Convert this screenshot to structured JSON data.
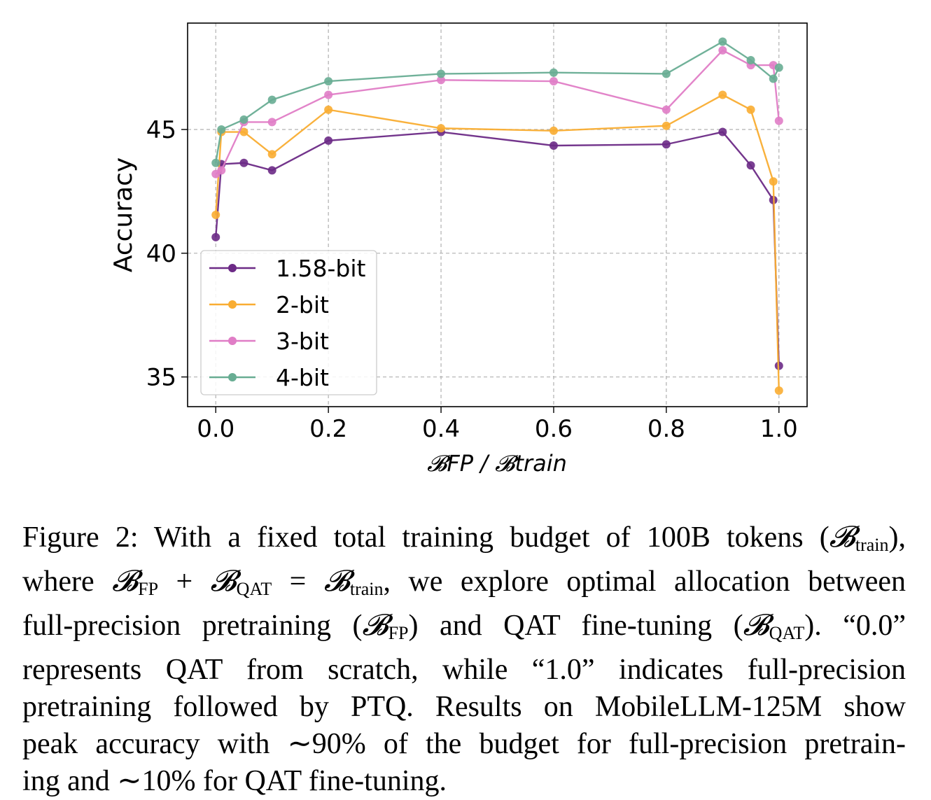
{
  "chart_data": {
    "type": "line",
    "xlabel": "𝓑FP / 𝓑train",
    "ylabel": "Accuracy",
    "xlim": [
      -0.05,
      1.05
    ],
    "ylim": [
      33.8,
      49.3
    ],
    "xticks": [
      0.0,
      0.2,
      0.4,
      0.6,
      0.8,
      1.0
    ],
    "xtick_labels": [
      "0.0",
      "0.2",
      "0.4",
      "0.6",
      "0.8",
      "1.0"
    ],
    "yticks": [
      35,
      40,
      45
    ],
    "ytick_labels": [
      "35",
      "40",
      "45"
    ],
    "grid": true,
    "legend_position": "lower-left",
    "x": [
      0.0,
      0.01,
      0.05,
      0.1,
      0.2,
      0.4,
      0.6,
      0.8,
      0.9,
      0.95,
      0.99,
      1.0
    ],
    "series": [
      {
        "name": "1.58-bit",
        "color": "#6c2a86",
        "values": [
          40.65,
          43.6,
          43.65,
          43.35,
          44.55,
          44.9,
          44.35,
          44.4,
          44.9,
          43.55,
          42.15,
          35.45
        ]
      },
      {
        "name": "2-bit",
        "color": "#f9ad32",
        "values": [
          41.55,
          44.9,
          44.9,
          44.0,
          45.8,
          45.05,
          44.95,
          45.15,
          46.4,
          45.8,
          42.9,
          34.45
        ]
      },
      {
        "name": "3-bit",
        "color": "#e07dc6",
        "values": [
          43.2,
          43.35,
          45.3,
          45.3,
          46.4,
          47.0,
          46.95,
          45.8,
          48.2,
          47.6,
          47.6,
          45.35
        ]
      },
      {
        "name": "4-bit",
        "color": "#68ad93",
        "values": [
          43.65,
          45.0,
          45.4,
          46.2,
          46.95,
          47.25,
          47.3,
          47.25,
          48.55,
          47.8,
          47.05,
          47.5
        ]
      }
    ]
  },
  "caption": {
    "line1_a": "Figure 2: With a fixed total training budget of 100B tokens (",
    "line1_b": "),",
    "line2_a": "where ",
    "line2_b": ", we explore optimal allocation between",
    "line3_a": "full-precision pretraining (",
    "line3_b": ") and QAT fine-tuning (",
    "line3_c": "). “0.0”",
    "line4": "represents QAT from scratch, while “1.0” indicates full-precision",
    "line5": "pretraining followed by PTQ. Results on MobileLLM-125M show",
    "line6": "peak accuracy with ∼90% of the budget for full-precision pretrain-",
    "line7": "ing and ∼10% for QAT fine-tuning.",
    "sym_b": "𝓑",
    "sub_train": "train",
    "sub_fp": "FP",
    "sub_qat": "QAT",
    "op_plus": " + ",
    "op_eq": " = "
  }
}
